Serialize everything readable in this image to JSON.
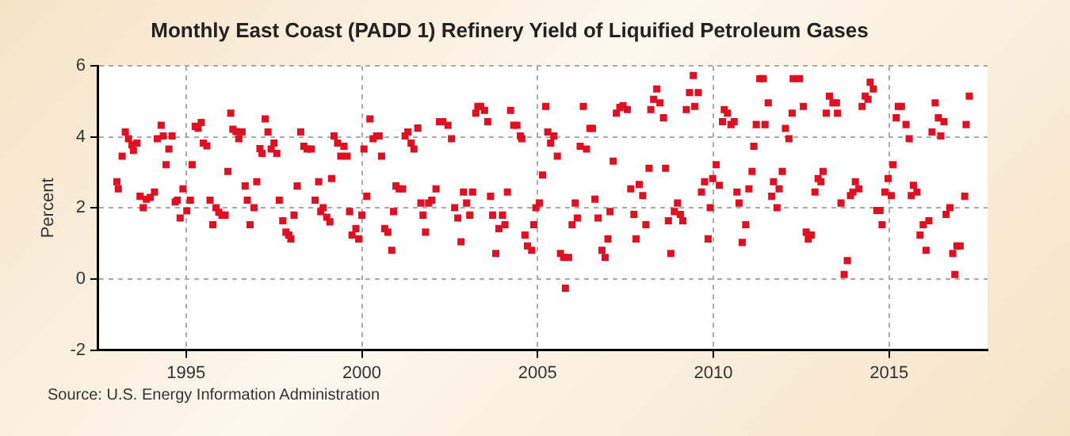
{
  "chart_data": {
    "type": "scatter",
    "title": "Monthly East Coast (PADD 1) Refinery Yield of Liquified Petroleum Gases",
    "ylabel": "Percent",
    "annotations": [
      "Source: U.S. Energy Information Administration"
    ],
    "color": "#dd1122",
    "marker": "square",
    "grid": true,
    "legend": false,
    "xlim": [
      1992.5,
      2017.8
    ],
    "xticks": [
      1995,
      2000,
      2005,
      2010,
      2015
    ],
    "ylim": [
      -2,
      6
    ],
    "yticks": [
      -2,
      0,
      2,
      4,
      6
    ],
    "x": [
      1993.03,
      1993.07,
      1993.18,
      1993.27,
      1993.36,
      1993.46,
      1993.5,
      1993.6,
      1993.69,
      1993.78,
      1993.87,
      1993.98,
      1994.1,
      1994.18,
      1994.29,
      1994.35,
      1994.43,
      1994.51,
      1994.6,
      1994.69,
      1994.75,
      1994.83,
      1994.91,
      1995.02,
      1995.12,
      1995.17,
      1995.26,
      1995.34,
      1995.43,
      1995.49,
      1995.59,
      1995.68,
      1995.76,
      1995.85,
      1995.93,
      1996.02,
      1996.11,
      1996.19,
      1996.27,
      1996.33,
      1996.42,
      1996.5,
      1996.59,
      1996.68,
      1996.74,
      1996.82,
      1996.93,
      1997.01,
      1997.1,
      1997.16,
      1997.25,
      1997.33,
      1997.42,
      1997.5,
      1997.58,
      1997.65,
      1997.75,
      1997.84,
      1997.92,
      1997.98,
      1998.07,
      1998.16,
      1998.26,
      1998.35,
      1998.44,
      1998.56,
      1998.67,
      1998.77,
      1998.83,
      1998.9,
      1999.0,
      1999.09,
      1999.14,
      1999.21,
      1999.31,
      1999.4,
      1999.49,
      1999.58,
      1999.65,
      1999.72,
      1999.83,
      1999.91,
      2000.0,
      2000.06,
      2000.14,
      2000.23,
      2000.32,
      2000.42,
      2000.49,
      2000.56,
      2000.65,
      2000.74,
      2000.85,
      2000.9,
      2000.97,
      2001.06,
      2001.16,
      2001.23,
      2001.31,
      2001.4,
      2001.48,
      2001.59,
      2001.68,
      2001.74,
      2001.81,
      2001.9,
      2001.99,
      2002.11,
      2002.21,
      2002.3,
      2002.45,
      2002.55,
      2002.64,
      2002.73,
      2002.82,
      2002.89,
      2002.98,
      2003.07,
      2003.15,
      2003.24,
      2003.3,
      2003.38,
      2003.49,
      2003.58,
      2003.66,
      2003.72,
      2003.81,
      2003.9,
      2004.0,
      2004.07,
      2004.14,
      2004.23,
      2004.32,
      2004.41,
      2004.51,
      2004.55,
      2004.64,
      2004.71,
      2004.83,
      2004.89,
      2004.95,
      2005.05,
      2005.14,
      2005.23,
      2005.29,
      2005.37,
      2005.46,
      2005.56,
      2005.65,
      2005.74,
      2005.79,
      2005.88,
      2005.98,
      2006.07,
      2006.13,
      2006.21,
      2006.3,
      2006.39,
      2006.49,
      2006.56,
      2006.63,
      2006.72,
      2006.83,
      2006.92,
      2007.0,
      2007.06,
      2007.15,
      2007.24,
      2007.34,
      2007.43,
      2007.55,
      2007.65,
      2007.74,
      2007.8,
      2007.89,
      2007.99,
      2008.08,
      2008.17,
      2008.22,
      2008.3,
      2008.39,
      2008.48,
      2008.58,
      2008.64,
      2008.72,
      2008.79,
      2008.89,
      2008.98,
      2009.06,
      2009.13,
      2009.23,
      2009.32,
      2009.43,
      2009.47,
      2009.57,
      2009.66,
      2009.75,
      2009.85,
      2009.91,
      2009.98,
      2010.08,
      2010.17,
      2010.26,
      2010.31,
      2010.4,
      2010.5,
      2010.59,
      2010.67,
      2010.73,
      2010.82,
      2010.92,
      2011.01,
      2011.1,
      2011.15,
      2011.22,
      2011.32,
      2011.42,
      2011.47,
      2011.56,
      2011.66,
      2011.71,
      2011.81,
      2011.87,
      2011.96,
      2012.05,
      2012.15,
      2012.24,
      2012.27,
      2012.45,
      2012.56,
      2012.64,
      2012.7,
      2012.79,
      2012.89,
      2012.98,
      2013.06,
      2013.12,
      2013.21,
      2013.3,
      2013.4,
      2013.5,
      2013.53,
      2013.63,
      2013.72,
      2013.81,
      2013.9,
      2013.97,
      2014.04,
      2014.14,
      2014.23,
      2014.32,
      2014.4,
      2014.46,
      2014.55,
      2014.65,
      2014.74,
      2014.8,
      2014.88,
      2014.97,
      2015.06,
      2015.11,
      2015.2,
      2015.26,
      2015.35,
      2015.48,
      2015.57,
      2015.63,
      2015.69,
      2015.79,
      2015.88,
      2015.97,
      2016.05,
      2016.13,
      2016.22,
      2016.31,
      2016.4,
      2016.47,
      2016.56,
      2016.62,
      2016.73,
      2016.81,
      2016.87,
      2016.93,
      2017.02,
      2017.15,
      2017.19,
      2017.28
    ],
    "values": [
      2.74,
      2.54,
      3.46,
      4.14,
      3.95,
      3.78,
      3.62,
      3.83,
      2.33,
      2.01,
      2.25,
      2.3,
      2.45,
      3.95,
      4.33,
      4.03,
      3.22,
      3.66,
      4.03,
      2.17,
      2.22,
      1.72,
      2.54,
      1.92,
      2.22,
      3.22,
      4.3,
      4.25,
      4.41,
      3.83,
      3.75,
      2.22,
      1.53,
      2.01,
      1.88,
      1.8,
      1.8,
      3.03,
      4.67,
      4.22,
      4.15,
      3.95,
      4.14,
      2.62,
      2.22,
      1.53,
      2.01,
      2.74,
      3.67,
      3.54,
      4.51,
      4.14,
      3.66,
      3.83,
      3.54,
      2.22,
      1.64,
      1.32,
      1.24,
      1.13,
      1.8,
      2.62,
      4.14,
      3.74,
      3.66,
      3.66,
      2.22,
      2.74,
      1.9,
      2.01,
      1.74,
      1.61,
      2.83,
      4.03,
      3.83,
      3.46,
      3.74,
      3.46,
      1.9,
      1.24,
      1.42,
      1.13,
      1.8,
      3.66,
      2.33,
      4.51,
      3.95,
      4.03,
      4.03,
      3.46,
      1.42,
      1.32,
      0.81,
      1.9,
      2.62,
      2.54,
      2.54,
      4.03,
      4.14,
      3.83,
      3.66,
      4.25,
      2.14,
      1.8,
      1.32,
      2.14,
      2.22,
      2.54,
      4.43,
      4.43,
      4.33,
      3.95,
      2.01,
      1.72,
      1.05,
      2.45,
      2.14,
      1.8,
      2.45,
      4.67,
      4.86,
      4.86,
      4.75,
      4.43,
      2.33,
      1.8,
      0.72,
      1.42,
      1.8,
      1.53,
      2.45,
      4.75,
      4.33,
      4.33,
      4.03,
      3.95,
      1.24,
      0.93,
      0.81,
      1.53,
      2.01,
      2.14,
      2.93,
      4.86,
      4.14,
      3.83,
      4.03,
      3.46,
      0.72,
      0.61,
      -0.26,
      0.61,
      1.53,
      2.14,
      1.72,
      3.74,
      4.86,
      3.66,
      4.24,
      4.24,
      2.25,
      1.72,
      0.81,
      0.61,
      1.13,
      1.9,
      3.32,
      4.67,
      4.83,
      4.88,
      4.77,
      2.54,
      1.82,
      1.13,
      2.66,
      2.35,
      1.53,
      3.12,
      4.77,
      5.06,
      5.35,
      4.96,
      4.54,
      3.12,
      1.64,
      0.72,
      1.9,
      2.14,
      1.82,
      1.64,
      4.77,
      5.25,
      5.73,
      4.86,
      5.25,
      2.45,
      2.74,
      1.13,
      2.01,
      2.83,
      3.22,
      2.64,
      4.43,
      4.77,
      4.67,
      4.35,
      4.43,
      2.45,
      2.14,
      1.03,
      1.53,
      2.54,
      3.03,
      3.74,
      4.35,
      5.64,
      5.64,
      4.35,
      4.96,
      2.33,
      2.74,
      2.01,
      2.54,
      3.03,
      4.24,
      3.95,
      4.67,
      5.64,
      5.64,
      4.86,
      1.32,
      1.13,
      1.24,
      2.45,
      2.83,
      2.74,
      3.03,
      4.67,
      5.15,
      4.96,
      4.96,
      4.67,
      2.14,
      0.13,
      0.52,
      2.35,
      2.45,
      2.74,
      2.54,
      4.86,
      5.15,
      5.06,
      5.54,
      5.35,
      1.93,
      1.93,
      1.53,
      2.45,
      2.83,
      2.35,
      3.22,
      4.54,
      4.86,
      4.86,
      4.35,
      3.95,
      2.35,
      2.64,
      2.45,
      1.24,
      1.53,
      0.81,
      1.64,
      4.14,
      4.96,
      4.54,
      4.03,
      4.43,
      1.82,
      2.01,
      0.72,
      0.13,
      0.93,
      0.93,
      2.33,
      4.35,
      5.15
    ]
  }
}
